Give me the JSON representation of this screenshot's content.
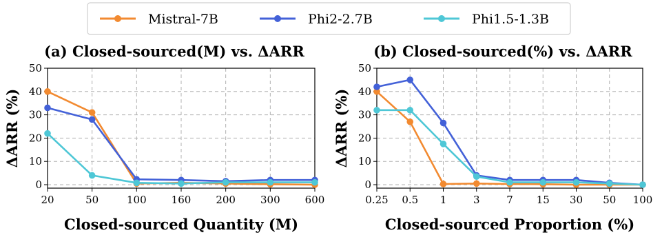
{
  "colors": {
    "Mistral-7B": "#f28a30",
    "Phi2-2.7B": "#4361d8",
    "Phi1.5-1.3B": "#4ec7d6"
  },
  "chart_data": [
    {
      "type": "line",
      "title": "(a) Closed-sourced(M) vs. ΔARR",
      "xlabel": "Closed-sourced Quantity (M)",
      "ylabel": "ΔARR (%)",
      "categories": [
        "20",
        "50",
        "100",
        "160",
        "200",
        "300",
        "600"
      ],
      "ylim": [
        0,
        50
      ],
      "yticks": [
        0,
        10,
        20,
        30,
        40,
        50
      ],
      "grid": true,
      "series": [
        {
          "name": "Mistral-7B",
          "values": [
            40,
            31,
            0.5,
            0.8,
            0.5,
            0.2,
            0
          ]
        },
        {
          "name": "Phi2-2.7B",
          "values": [
            33,
            28,
            2.3,
            2,
            1.5,
            2,
            2
          ]
        },
        {
          "name": "Phi1.5-1.3B",
          "values": [
            22,
            4,
            0.8,
            0.5,
            1,
            1,
            1
          ]
        }
      ]
    },
    {
      "type": "line",
      "title": "(b) Closed-sourced(%) vs. ΔARR",
      "xlabel": "Closed-sourced Proportion (%)",
      "ylabel": "ΔARR (%)",
      "categories": [
        "0.25",
        "0.5",
        "1",
        "3",
        "7",
        "15",
        "30",
        "50",
        "100"
      ],
      "ylim": [
        0,
        50
      ],
      "yticks": [
        0,
        10,
        20,
        30,
        40,
        50
      ],
      "grid": true,
      "series": [
        {
          "name": "Mistral-7B",
          "values": [
            40,
            27,
            0.3,
            0.5,
            0.3,
            0.2,
            0,
            0,
            0
          ]
        },
        {
          "name": "Phi2-2.7B",
          "values": [
            42,
            45,
            26.5,
            4,
            2,
            2,
            2,
            0.8,
            0
          ]
        },
        {
          "name": "Phi1.5-1.3B",
          "values": [
            32,
            32,
            17.5,
            3.5,
            1,
            1,
            1,
            0.5,
            0
          ]
        }
      ]
    }
  ],
  "legend": {
    "placement": "top-center",
    "items": [
      "Mistral-7B",
      "Phi2-2.7B",
      "Phi1.5-1.3B"
    ]
  }
}
